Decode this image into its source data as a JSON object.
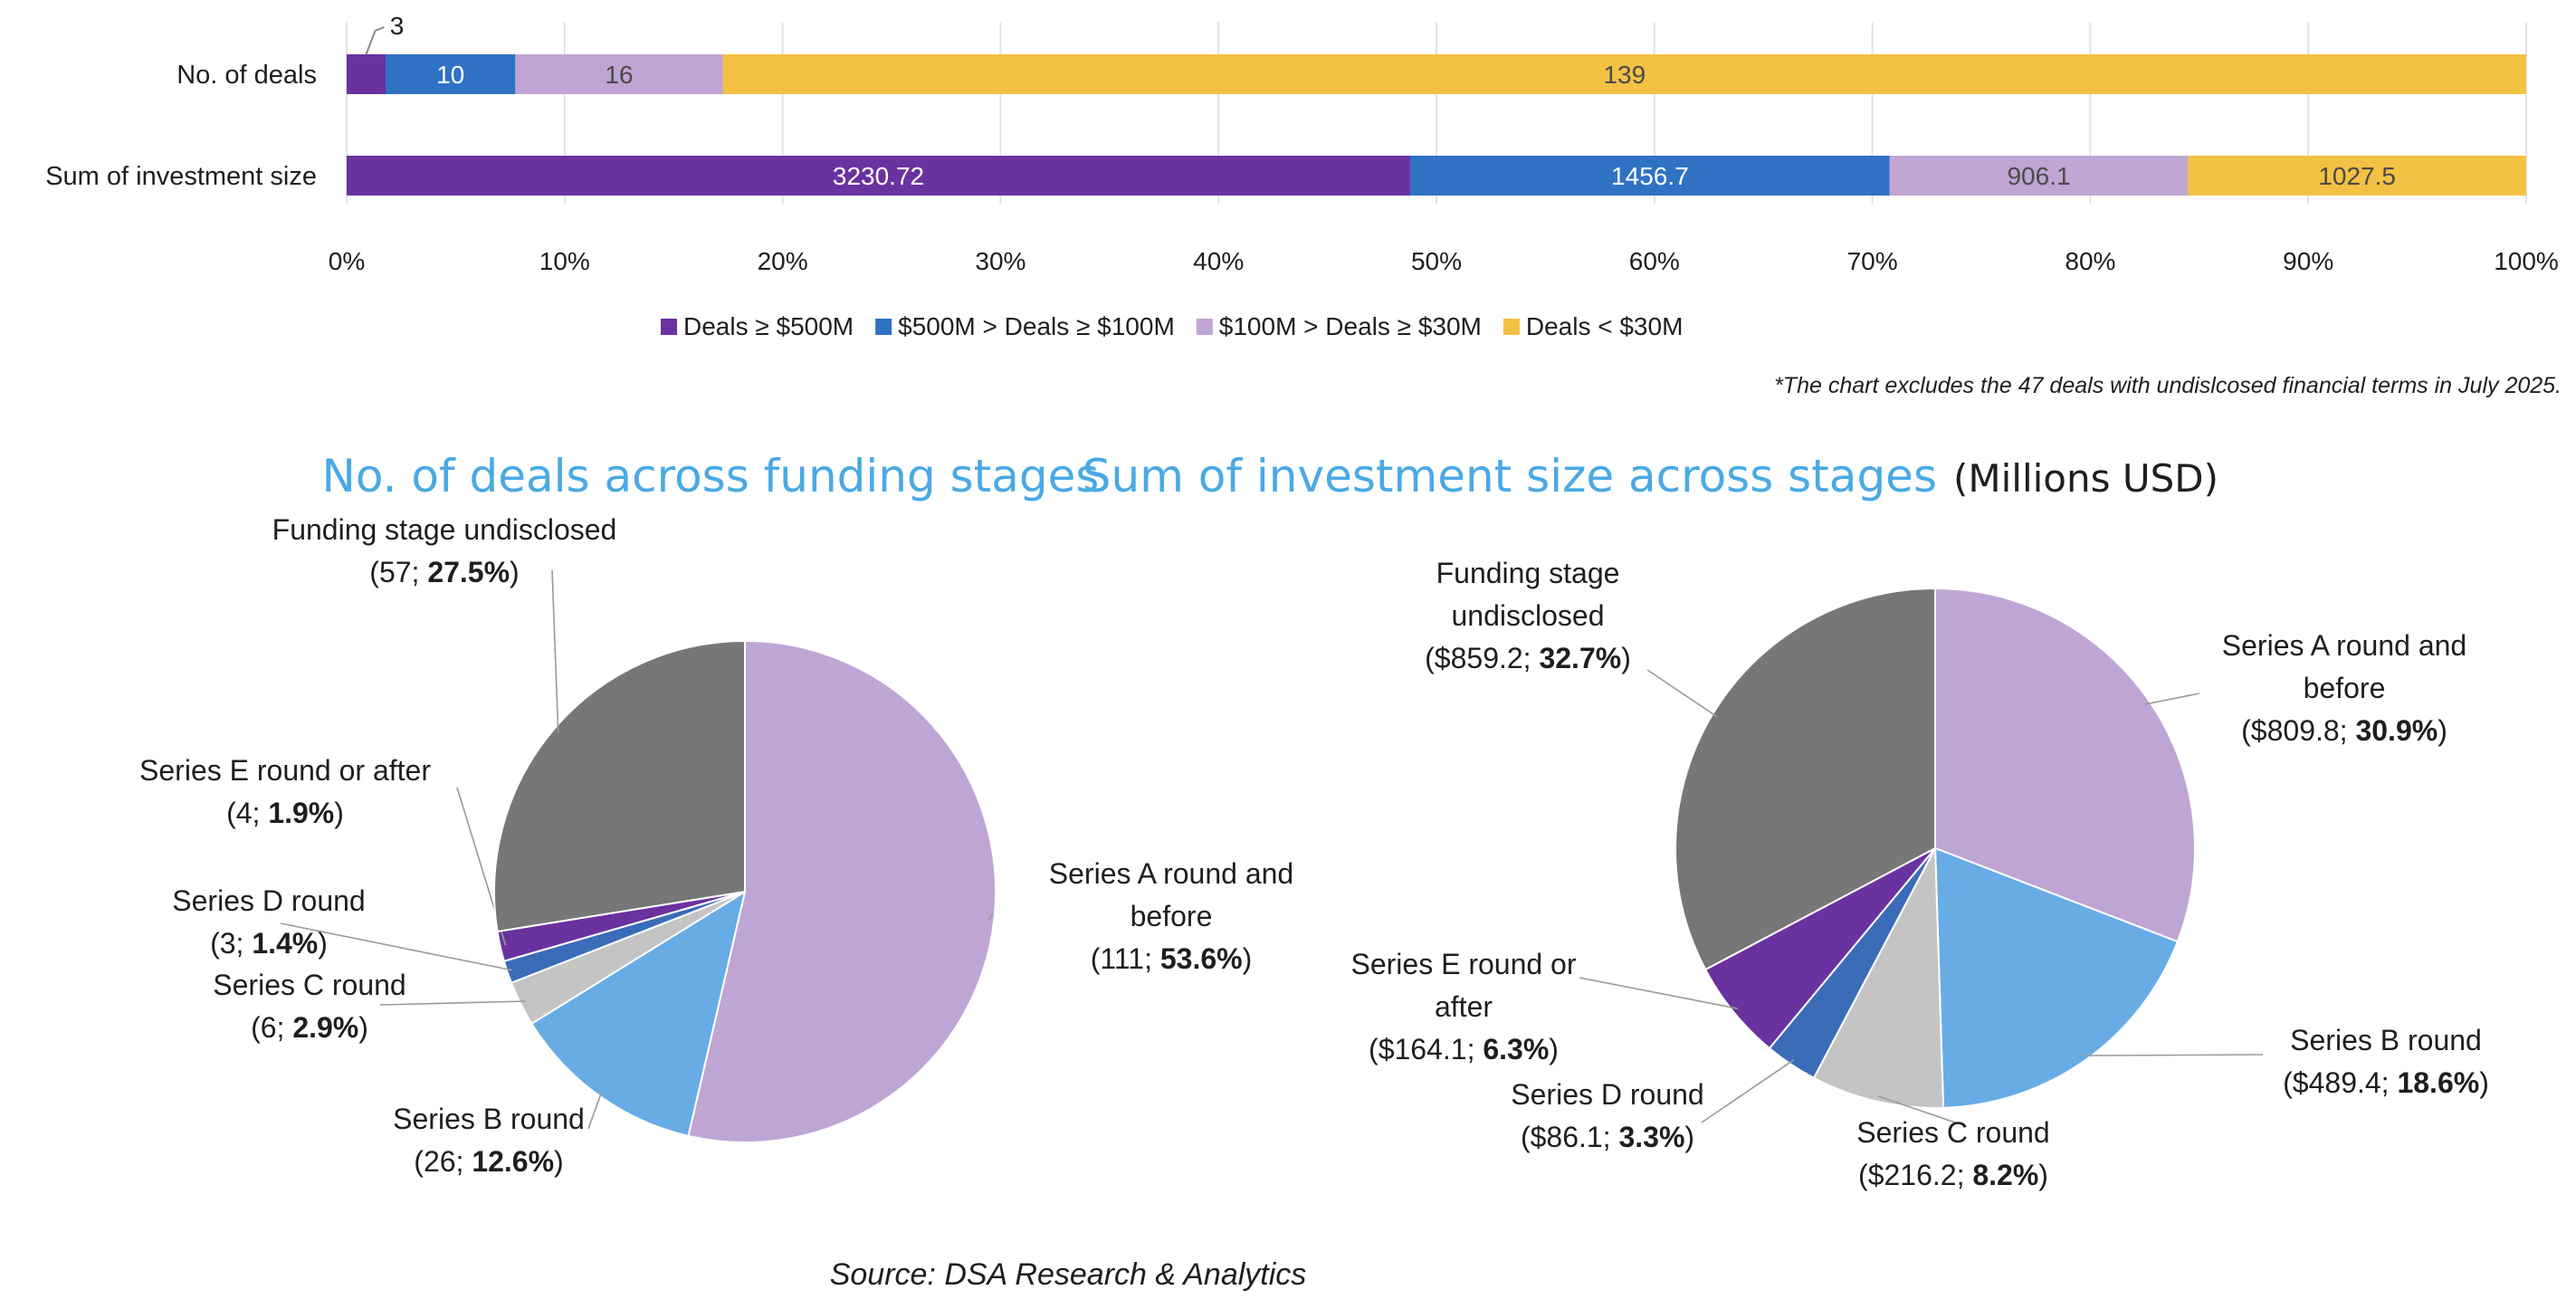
{
  "stacked_legend": [
    {
      "label": "Deals ≥ $500M",
      "color": "#6a329f"
    },
    {
      "label": "$500M > Deals ≥ $100M",
      "color": "#2f72c4"
    },
    {
      "label": "$100M > Deals ≥ $30M",
      "color": "#bfa5d3"
    },
    {
      "label": "Deals < $30M",
      "color": "#f3c143"
    }
  ],
  "footnote": "*The chart excludes the 47 deals with undislcosed financial terms in July 2025.",
  "source": "Source: DSA Research & Analytics",
  "pie_deals_title": "No. of deals across funding stages",
  "pie_invest_title": "Sum of investment size across stages",
  "pie_invest_unit": "(Millions USD)",
  "chart_data": [
    {
      "type": "bar",
      "orientation": "horizontal",
      "stacked": "100%",
      "categories": [
        "No. of deals",
        "Sum of investment size"
      ],
      "series": [
        {
          "name": "Deals ≥ $500M",
          "values": [
            3,
            3230.72
          ],
          "labels": [
            "3",
            "3230.72"
          ]
        },
        {
          "name": "$500M > Deals ≥ $100M",
          "values": [
            10,
            1456.7
          ],
          "labels": [
            "10",
            "1456.7"
          ]
        },
        {
          "name": "$100M > Deals ≥ $30M",
          "values": [
            16,
            906.1
          ],
          "labels": [
            "16",
            "906.1"
          ]
        },
        {
          "name": "Deals < $30M",
          "values": [
            139,
            1027.5
          ],
          "labels": [
            "139",
            "1027.5"
          ]
        }
      ],
      "xlim": [
        0,
        100
      ],
      "xticks": [
        "0%",
        "10%",
        "20%",
        "30%",
        "40%",
        "50%",
        "60%",
        "70%",
        "80%",
        "90%",
        "100%"
      ],
      "grid": true,
      "legend": "bottom"
    },
    {
      "type": "pie",
      "title": "No. of deals across funding stages",
      "slices": [
        {
          "name": "Series A round and before",
          "value": 111,
          "pct": 53.6,
          "lines": [
            "Series A round and",
            "before"
          ],
          "vtext": "(111; ",
          "ptext": "53.6%",
          "color": "#bfa5d3"
        },
        {
          "name": "Series B round",
          "value": 26,
          "pct": 12.6,
          "lines": [
            "Series B round"
          ],
          "vtext": "(26; ",
          "ptext": "12.6%",
          "color": "#68ace6"
        },
        {
          "name": "Series C round",
          "value": 6,
          "pct": 2.9,
          "lines": [
            "Series C round"
          ],
          "vtext": "(6; ",
          "ptext": "2.9%",
          "color": "#c4c4c4"
        },
        {
          "name": "Series D round",
          "value": 3,
          "pct": 1.4,
          "lines": [
            "Series D round"
          ],
          "vtext": "(3; ",
          "ptext": "1.4%",
          "color": "#3a6cb8"
        },
        {
          "name": "Series E round or after",
          "value": 4,
          "pct": 1.9,
          "lines": [
            "Series E round or after"
          ],
          "vtext": "(4; ",
          "ptext": "1.9%",
          "color": "#6a329f"
        },
        {
          "name": "Funding stage undisclosed",
          "value": 57,
          "pct": 27.5,
          "lines": [
            "Funding stage undisclosed"
          ],
          "vtext": "(57; ",
          "ptext": "27.5%",
          "color": "#777777"
        }
      ]
    },
    {
      "type": "pie",
      "title": "Sum of investment size across stages",
      "unit": "(Millions USD)",
      "slices": [
        {
          "name": "Series A round and before",
          "value": 809.8,
          "pct": 30.9,
          "lines": [
            "Series A round and",
            "before"
          ],
          "vtext": "($809.8; ",
          "ptext": "30.9%",
          "color": "#bfa5d3"
        },
        {
          "name": "Series B round",
          "value": 489.4,
          "pct": 18.6,
          "lines": [
            "Series B round"
          ],
          "vtext": "($489.4; ",
          "ptext": "18.6%",
          "color": "#68ace6"
        },
        {
          "name": "Series C round",
          "value": 216.2,
          "pct": 8.2,
          "lines": [
            "Series C round"
          ],
          "vtext": "($216.2; ",
          "ptext": "8.2%",
          "color": "#c4c4c4"
        },
        {
          "name": "Series D round",
          "value": 86.1,
          "pct": 3.3,
          "lines": [
            "Series D round"
          ],
          "vtext": "($86.1; ",
          "ptext": "3.3%",
          "color": "#3a6cb8"
        },
        {
          "name": "Series E round or after",
          "value": 164.1,
          "pct": 6.3,
          "lines": [
            "Series E round or",
            "after"
          ],
          "vtext": "($164.1; ",
          "ptext": "6.3%",
          "color": "#6a329f"
        },
        {
          "name": "Funding stage undisclosed",
          "value": 859.2,
          "pct": 32.7,
          "lines": [
            "Funding stage",
            "undisclosed"
          ],
          "vtext": "($859.2; ",
          "ptext": "32.7%",
          "color": "#777777"
        }
      ]
    }
  ]
}
